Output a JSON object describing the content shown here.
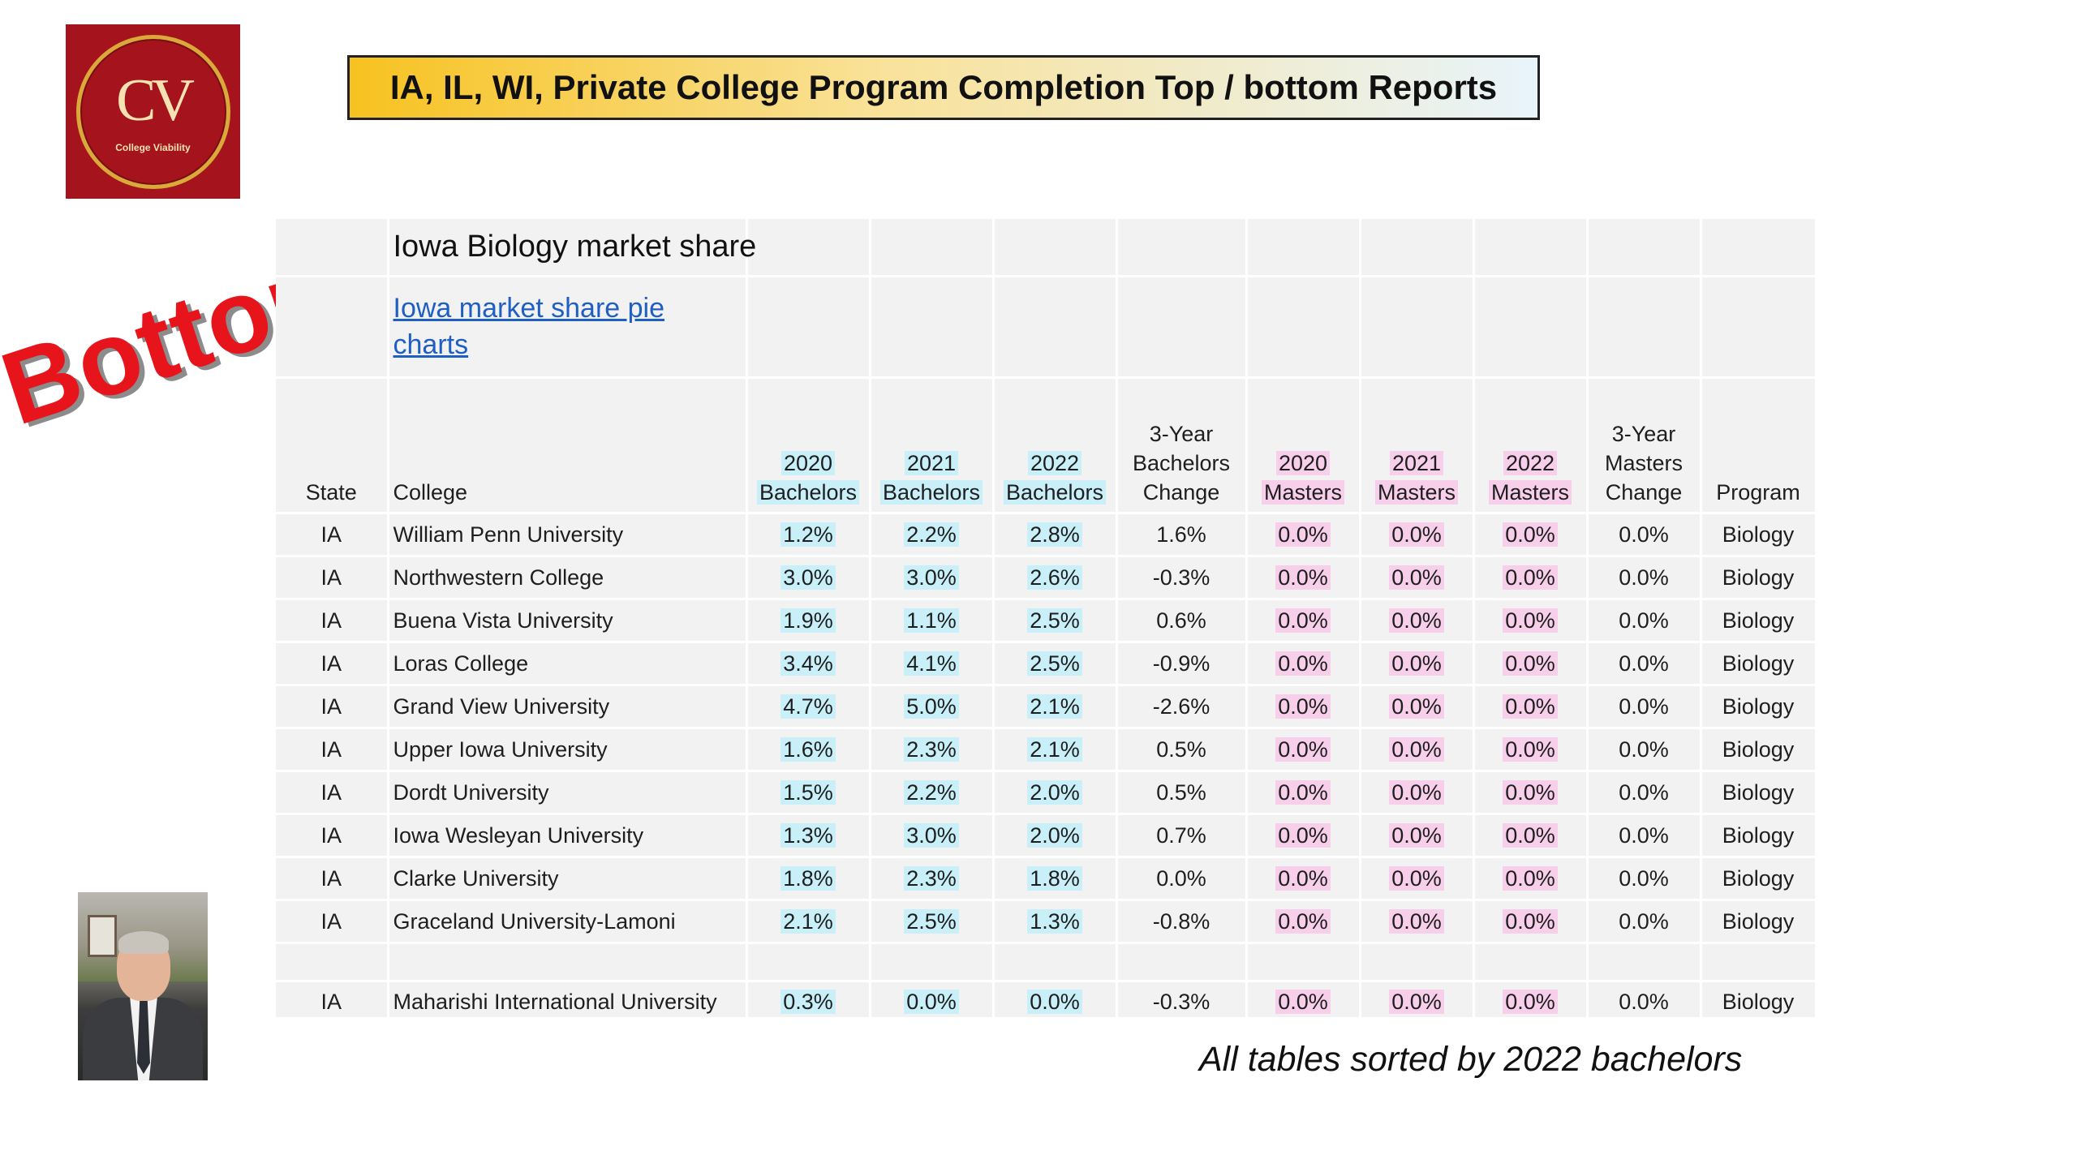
{
  "logo": {
    "mark": "CV",
    "subtitle": "College Viability"
  },
  "slide_title": "IA, IL, WI, Private College Program Completion Top / bottom Reports",
  "stamp_text": "Bottom",
  "report": {
    "title": "Iowa Biology market share",
    "link_text": "Iowa market share pie charts",
    "headers": [
      "State",
      "College",
      "2020\nBachelors",
      "2021\nBachelors",
      "2022\nBachelors",
      "3-Year\nBachelors\nChange",
      "2020\nMasters",
      "2021\nMasters",
      "2022\nMasters",
      "3-Year\nMasters\nChange",
      "Program"
    ],
    "rows": [
      [
        "IA",
        "William Penn University",
        "1.2%",
        "2.2%",
        "2.8%",
        "1.6%",
        "0.0%",
        "0.0%",
        "0.0%",
        "0.0%",
        "Biology"
      ],
      [
        "IA",
        "Northwestern College",
        "3.0%",
        "3.0%",
        "2.6%",
        "-0.3%",
        "0.0%",
        "0.0%",
        "0.0%",
        "0.0%",
        "Biology"
      ],
      [
        "IA",
        "Buena Vista University",
        "1.9%",
        "1.1%",
        "2.5%",
        "0.6%",
        "0.0%",
        "0.0%",
        "0.0%",
        "0.0%",
        "Biology"
      ],
      [
        "IA",
        "Loras College",
        "3.4%",
        "4.1%",
        "2.5%",
        "-0.9%",
        "0.0%",
        "0.0%",
        "0.0%",
        "0.0%",
        "Biology"
      ],
      [
        "IA",
        "Grand View University",
        "4.7%",
        "5.0%",
        "2.1%",
        "-2.6%",
        "0.0%",
        "0.0%",
        "0.0%",
        "0.0%",
        "Biology"
      ],
      [
        "IA",
        "Upper Iowa University",
        "1.6%",
        "2.3%",
        "2.1%",
        "0.5%",
        "0.0%",
        "0.0%",
        "0.0%",
        "0.0%",
        "Biology"
      ],
      [
        "IA",
        "Dordt University",
        "1.5%",
        "2.2%",
        "2.0%",
        "0.5%",
        "0.0%",
        "0.0%",
        "0.0%",
        "0.0%",
        "Biology"
      ],
      [
        "IA",
        "Iowa Wesleyan University",
        "1.3%",
        "3.0%",
        "2.0%",
        "0.7%",
        "0.0%",
        "0.0%",
        "0.0%",
        "0.0%",
        "Biology"
      ],
      [
        "IA",
        "Clarke University",
        "1.8%",
        "2.3%",
        "1.8%",
        "0.0%",
        "0.0%",
        "0.0%",
        "0.0%",
        "0.0%",
        "Biology"
      ],
      [
        "IA",
        "Graceland University-Lamoni",
        "2.1%",
        "2.5%",
        "1.3%",
        "-0.8%",
        "0.0%",
        "0.0%",
        "0.0%",
        "0.0%",
        "Biology"
      ]
    ],
    "last_row": [
      "IA",
      "Maharishi International University",
      "0.3%",
      "0.0%",
      "0.0%",
      "-0.3%",
      "0.0%",
      "0.0%",
      "0.0%",
      "0.0%",
      "Biology"
    ]
  },
  "footnote": "All tables sorted by 2022 bachelors"
}
